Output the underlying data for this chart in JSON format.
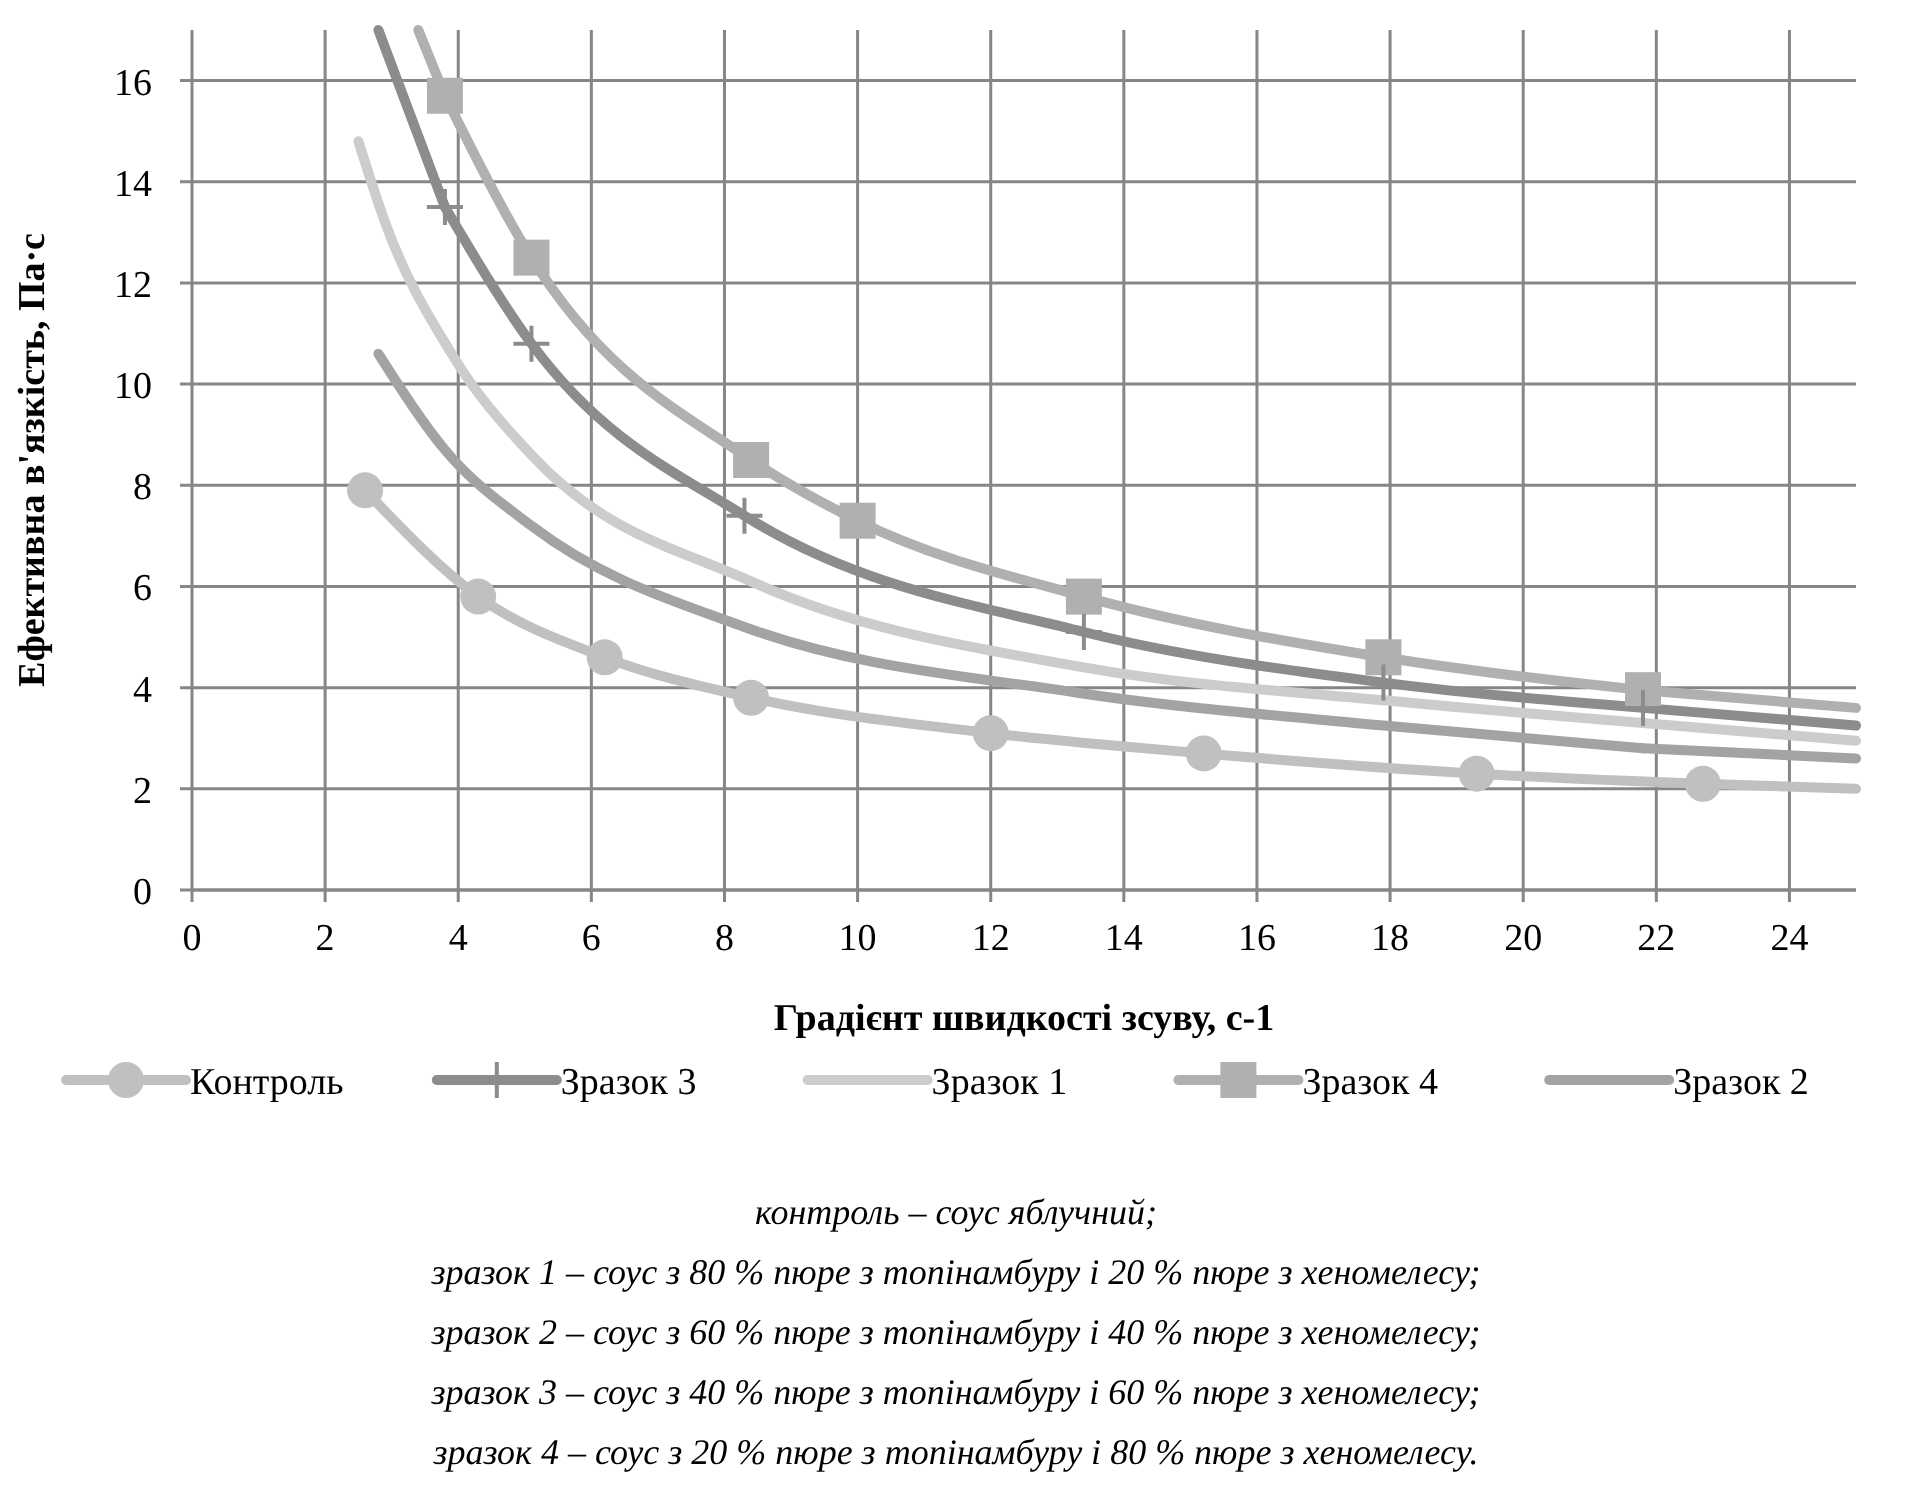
{
  "chart_data": {
    "type": "line",
    "xlabel": "Градієнт швидкості зсуву, с-1",
    "ylabel": "Ефективна в'язкість, Па·с",
    "xlim": [
      0,
      25
    ],
    "ylim": [
      0,
      17
    ],
    "xticks": [
      0,
      2,
      4,
      6,
      8,
      10,
      12,
      14,
      16,
      18,
      20,
      22,
      24
    ],
    "yticks": [
      0,
      2,
      4,
      6,
      8,
      10,
      12,
      14,
      16
    ],
    "grid": true,
    "legend": "bottom",
    "series": [
      {
        "name": "Контроль",
        "color": "#c0c0c0",
        "marker": "circle",
        "x": [
          2.6,
          4.3,
          6.2,
          8.4,
          12,
          15.2,
          19.3,
          22.7
        ],
        "values": [
          7.9,
          5.8,
          4.6,
          3.8,
          3.1,
          2.7,
          2.3,
          2.1
        ]
      },
      {
        "name": "Зразок 3",
        "color": "#8c8c8c",
        "marker": "cross",
        "x": [
          3.8,
          5.1,
          8.3,
          13.4,
          17.9,
          21.8
        ],
        "values": [
          13.5,
          10.8,
          7.4,
          5.1,
          4.1,
          3.6
        ]
      },
      {
        "name": "Зразок 1",
        "color": "#cccccc",
        "marker": "none",
        "x": [
          2.5,
          2.9,
          3.9,
          5.1,
          8.4,
          13.4,
          17.9,
          21.8
        ],
        "values": [
          14.8,
          13.2,
          10.6,
          8.6,
          6.1,
          4.4,
          3.75,
          3.3
        ]
      },
      {
        "name": "Зразок 4",
        "color": "#b0b0b0",
        "marker": "square",
        "x": [
          3.8,
          5.1,
          8.4,
          10,
          13.4,
          17.9,
          21.8
        ],
        "values": [
          15.7,
          12.5,
          8.5,
          7.3,
          5.8,
          4.6,
          3.95
        ]
      },
      {
        "name": "Зразок 2",
        "color": "#a3a3a3",
        "marker": "none",
        "x": [
          2.8,
          3.8,
          5.1,
          8.3,
          13.3,
          17.9,
          21.8
        ],
        "values": [
          10.6,
          8.7,
          7.2,
          5.2,
          3.9,
          3.25,
          2.8
        ]
      },
      {
        "color": "#c0c0c0",
        "marker": "none",
        "x": [
          22.7,
          25
        ],
        "values": [
          2.1,
          2.0
        ]
      },
      {
        "color": "#8c8c8c",
        "marker": "none",
        "x": [
          2.8,
          3.8
        ],
        "values": [
          17,
          13.5
        ]
      },
      {
        "color": "#8c8c8c",
        "marker": "none",
        "x": [
          21.8,
          25
        ],
        "values": [
          3.6,
          3.25
        ]
      },
      {
        "color": "#cccccc",
        "marker": "none",
        "x": [
          21.8,
          25
        ],
        "values": [
          3.3,
          2.95
        ]
      },
      {
        "color": "#b0b0b0",
        "marker": "none",
        "x": [
          3.4,
          3.8
        ],
        "values": [
          17,
          15.7
        ]
      },
      {
        "color": "#b0b0b0",
        "marker": "none",
        "x": [
          21.8,
          25
        ],
        "values": [
          3.95,
          3.6
        ]
      },
      {
        "color": "#a3a3a3",
        "marker": "none",
        "x": [
          21.8,
          25
        ],
        "values": [
          2.8,
          2.6
        ]
      }
    ],
    "annotations": [
      "контроль – соус яблучний;",
      "зразок 1 – соус з 80 % пюре з топінамбуру і 20 % пюре з хеномелесу;",
      "зразок 2 – соус з 60 % пюре з топінамбуру і 40 % пюре з хеномелесу;",
      "зразок 3 – соус з 40 % пюре з топінамбуру і 60 % пюре з хеномелесу;",
      "зразок 4 – соус з 20 % пюре з топінамбуру і 80 % пюре з хеномелесу."
    ]
  }
}
